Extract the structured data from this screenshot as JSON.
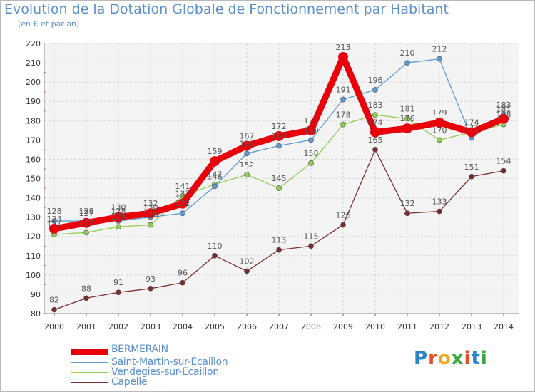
{
  "header": {
    "title": "Evolution de la Dotation Globale de Fonctionnement par Habitant",
    "subtitle": "(en € et par an)"
  },
  "logo": {
    "text": "Proxiti",
    "colors": [
      "#2a86c8",
      "#e84b2b",
      "#f2a51c",
      "#3aa640",
      "#e84b2b",
      "#2a86c8",
      "#3aa640"
    ]
  },
  "chart_data": {
    "type": "line",
    "title": "Evolution de la Dotation Globale de Fonctionnement par Habitant",
    "subtitle": "(en € et par an)",
    "xlabel": "",
    "ylabel": "",
    "ylim": [
      80,
      220
    ],
    "yticks": [
      80,
      90,
      100,
      110,
      120,
      130,
      140,
      150,
      160,
      170,
      180,
      190,
      200,
      210,
      220
    ],
    "categories": [
      "2000",
      "2001",
      "2002",
      "2003",
      "2004",
      "2005",
      "2006",
      "2007",
      "2008",
      "2009",
      "2010",
      "2011",
      "2012",
      "2013",
      "2014"
    ],
    "grid": true,
    "legend_position": "bottom-left",
    "series": [
      {
        "name": "BERMERAIN",
        "color": "#e8000b",
        "values": [
          124,
          127,
          130,
          132,
          137,
          159,
          167,
          172,
          175,
          213,
          174,
          176,
          179,
          174,
          181
        ]
      },
      {
        "name": "Saint-Martin-sur-Écaillon",
        "color": "#5b9bd5",
        "values": [
          128,
          128,
          128,
          130,
          132,
          146,
          163,
          167,
          170,
          191,
          196,
          210,
          212,
          171,
          183
        ]
      },
      {
        "name": "Vendegies-sur-Ecaillon",
        "color": "#92d050",
        "values": [
          121,
          122,
          125,
          126,
          141,
          147,
          152,
          145,
          158,
          178,
          183,
          181,
          170,
          174,
          178
        ]
      },
      {
        "name": "Capelle",
        "color": "#7b2c2c",
        "values": [
          82,
          88,
          91,
          93,
          96,
          110,
          102,
          113,
          115,
          126,
          165,
          132,
          133,
          151,
          154
        ]
      }
    ]
  }
}
